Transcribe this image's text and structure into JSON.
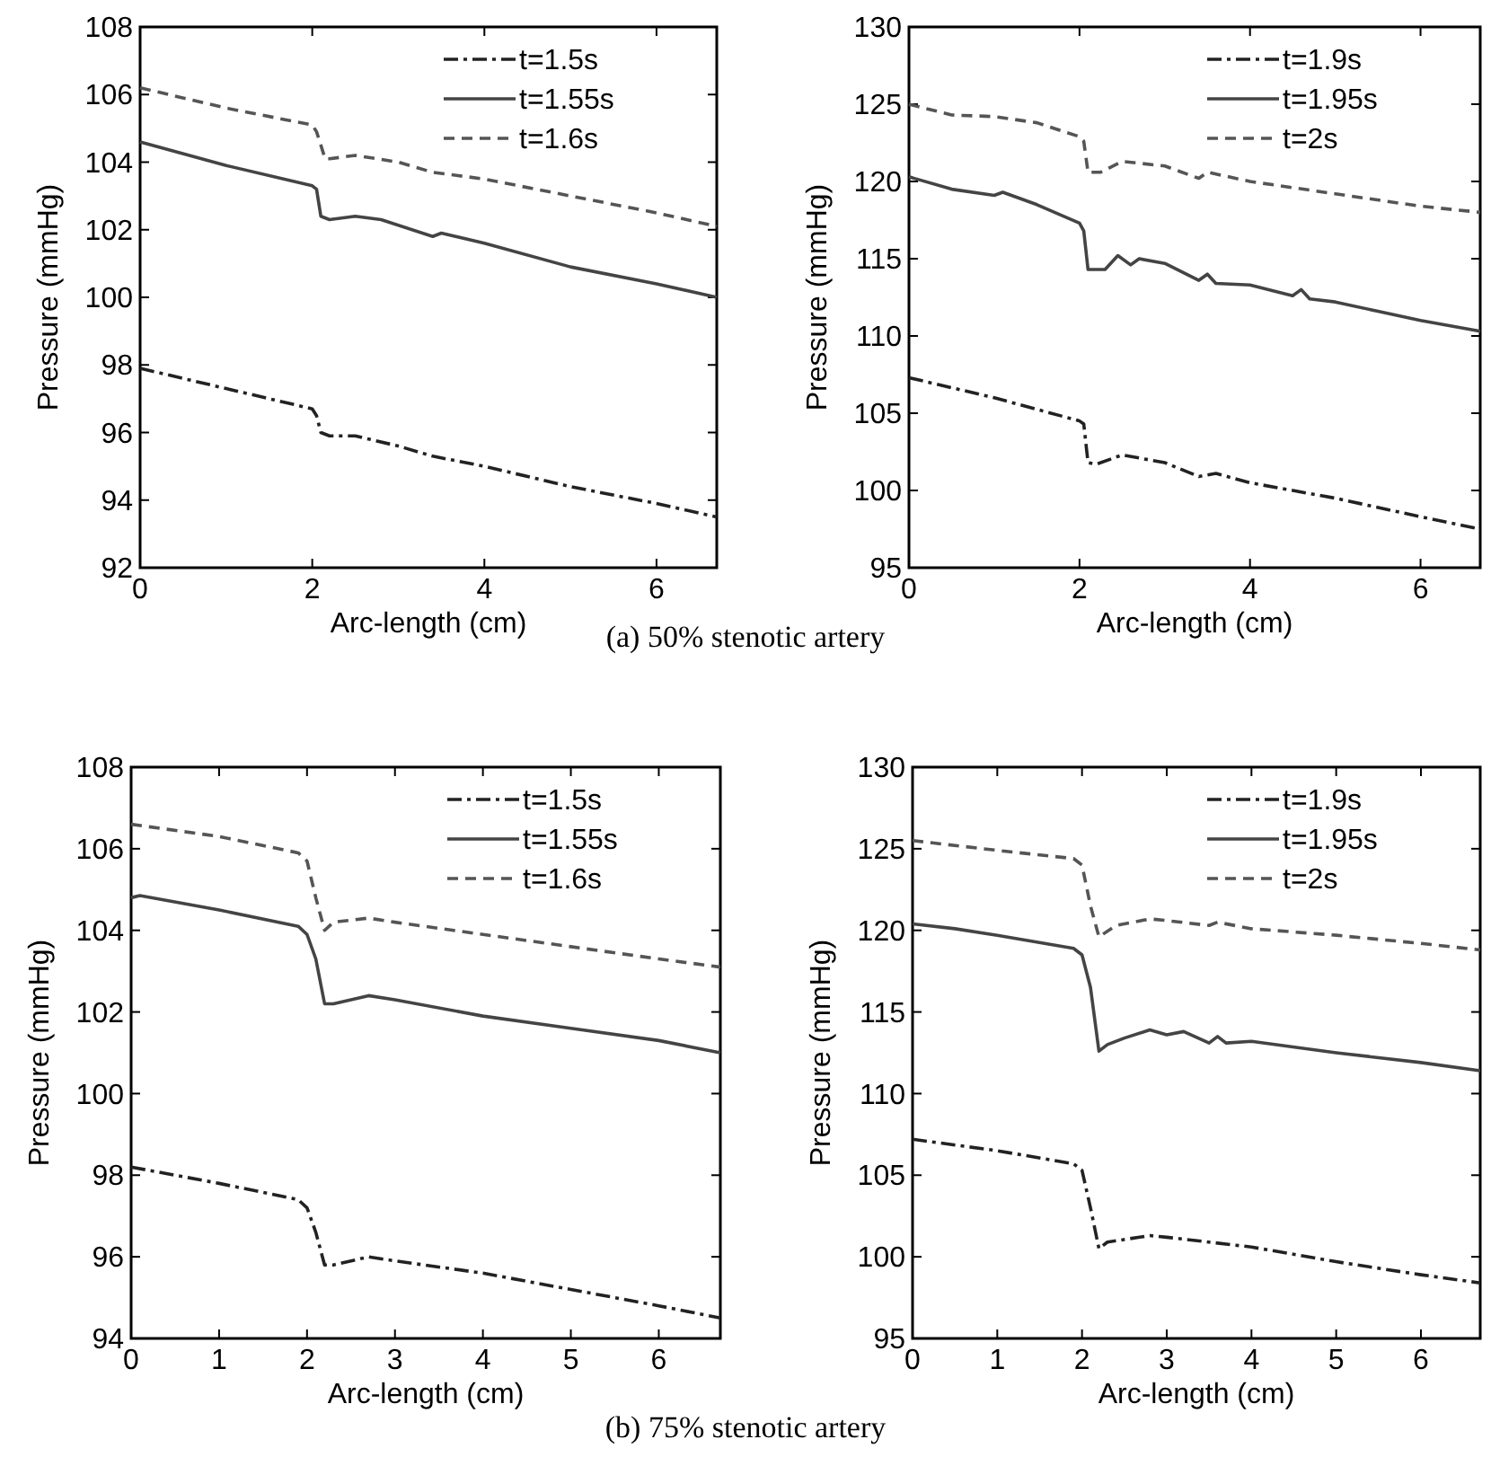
{
  "chart_data": [
    {
      "type": "line",
      "xlabel": "Arc-length (cm)",
      "ylabel": "Pressure (mmHg)",
      "xlim": [
        0,
        6.7
      ],
      "xticks": [
        0,
        2,
        4,
        6
      ],
      "ylim": [
        92,
        108
      ],
      "yticks": [
        92,
        94,
        96,
        98,
        100,
        102,
        104,
        106,
        108
      ],
      "legend": "top right",
      "grid": false,
      "annotations": [
        "(a) 50% stenotic artery"
      ],
      "series": [
        {
          "name": "t=1.5s",
          "color": "#222222",
          "line_style": "dashdot",
          "x": [
            0,
            1,
            2,
            2.05,
            2.1,
            2.2,
            2.5,
            3,
            3.4,
            4,
            5,
            6,
            6.7
          ],
          "values": [
            97.9,
            97.3,
            96.7,
            96.5,
            96.0,
            95.9,
            95.9,
            95.6,
            95.3,
            95.0,
            94.4,
            93.9,
            93.5
          ]
        },
        {
          "name": "t=1.55s",
          "color": "#444444",
          "line_style": "solid",
          "x": [
            0,
            1,
            2,
            2.05,
            2.1,
            2.2,
            2.5,
            2.8,
            3.4,
            3.5,
            4,
            5,
            6,
            6.7
          ],
          "values": [
            104.6,
            103.9,
            103.3,
            103.2,
            102.4,
            102.3,
            102.4,
            102.3,
            101.8,
            101.9,
            101.6,
            100.9,
            100.4,
            100.0
          ]
        },
        {
          "name": "t=1.6s",
          "color": "#555555",
          "line_style": "dashed",
          "x": [
            0,
            1,
            2,
            2.05,
            2.15,
            2.2,
            2.5,
            3,
            3.4,
            4,
            5,
            6,
            6.7
          ],
          "values": [
            106.2,
            105.6,
            105.1,
            104.9,
            104.1,
            104.1,
            104.2,
            104.0,
            103.7,
            103.5,
            103.0,
            102.5,
            102.1
          ]
        }
      ]
    },
    {
      "type": "line",
      "xlabel": "Arc-length (cm)",
      "ylabel": "Pressure (mmHg)",
      "xlim": [
        0,
        6.7
      ],
      "xticks": [
        0,
        2,
        4,
        6
      ],
      "ylim": [
        95,
        130
      ],
      "yticks": [
        95,
        100,
        105,
        110,
        115,
        120,
        125,
        130
      ],
      "legend": "top right",
      "grid": false,
      "series": [
        {
          "name": "t=1.9s",
          "color": "#222222",
          "line_style": "dashdot",
          "x": [
            0,
            1,
            2,
            2.05,
            2.1,
            2.2,
            2.5,
            3,
            3.4,
            3.6,
            4,
            5,
            6,
            6.7
          ],
          "values": [
            107.3,
            106,
            104.5,
            104.3,
            101.8,
            101.7,
            102.3,
            101.8,
            100.9,
            101.1,
            100.5,
            99.5,
            98.3,
            97.5
          ]
        },
        {
          "name": "t=1.95s",
          "color": "#444444",
          "line_style": "solid",
          "x": [
            0,
            0.5,
            1,
            1.1,
            1.5,
            2,
            2.05,
            2.1,
            2.3,
            2.45,
            2.6,
            2.7,
            3,
            3.4,
            3.5,
            3.6,
            4,
            4.5,
            4.6,
            4.7,
            5,
            5.5,
            6,
            6.7
          ],
          "values": [
            120.3,
            119.5,
            119.1,
            119.3,
            118.5,
            117.3,
            116.8,
            114.3,
            114.3,
            115.2,
            114.6,
            115,
            114.7,
            113.6,
            114,
            113.4,
            113.3,
            112.6,
            113,
            112.4,
            112.2,
            111.6,
            111,
            110.3
          ]
        },
        {
          "name": "t=2s",
          "color": "#555555",
          "line_style": "dashed",
          "x": [
            0,
            0.5,
            1,
            1.5,
            2,
            2.05,
            2.1,
            2.25,
            2.5,
            3,
            3.4,
            3.5,
            4,
            5,
            6,
            6.7
          ],
          "values": [
            125,
            124.3,
            124.2,
            123.8,
            122.9,
            122.6,
            120.6,
            120.6,
            121.3,
            121,
            120.2,
            120.6,
            120,
            119.2,
            118.4,
            118
          ]
        }
      ]
    },
    {
      "type": "line",
      "xlabel": "Arc-length (cm)",
      "ylabel": "Pressure (mmHg)",
      "xlim": [
        0,
        6.7
      ],
      "xticks": [
        0,
        1,
        2,
        3,
        4,
        5,
        6
      ],
      "ylim": [
        94,
        108
      ],
      "yticks": [
        94,
        96,
        98,
        100,
        102,
        104,
        106,
        108
      ],
      "legend": "top right",
      "grid": false,
      "annotations": [
        "(b) 75% stenotic artery"
      ],
      "series": [
        {
          "name": "t=1.5s",
          "color": "#222222",
          "line_style": "dashdot",
          "x": [
            0,
            1,
            1.9,
            2.0,
            2.1,
            2.2,
            2.3,
            2.7,
            3,
            4,
            5,
            6,
            6.7
          ],
          "values": [
            98.2,
            97.8,
            97.4,
            97.2,
            96.6,
            95.8,
            95.8,
            96.0,
            95.9,
            95.6,
            95.2,
            94.8,
            94.5
          ]
        },
        {
          "name": "t=1.55s",
          "color": "#444444",
          "line_style": "solid",
          "x": [
            0,
            0.1,
            1,
            1.9,
            2.0,
            2.1,
            2.2,
            2.3,
            2.7,
            3,
            4,
            5,
            6,
            6.7
          ],
          "values": [
            104.8,
            104.85,
            104.5,
            104.1,
            103.9,
            103.3,
            102.2,
            102.2,
            102.4,
            102.3,
            101.9,
            101.6,
            101.3,
            101.0
          ]
        },
        {
          "name": "t=1.6s",
          "color": "#555555",
          "line_style": "dashed",
          "x": [
            0,
            1,
            1.9,
            2.0,
            2.1,
            2.2,
            2.3,
            2.7,
            3,
            4,
            5,
            6,
            6.7
          ],
          "values": [
            106.6,
            106.3,
            105.9,
            105.7,
            104.8,
            104.0,
            104.2,
            104.3,
            104.2,
            103.9,
            103.6,
            103.3,
            103.1
          ]
        }
      ]
    },
    {
      "type": "line",
      "xlabel": "Arc-length (cm)",
      "ylabel": "Pressure (mmHg)",
      "xlim": [
        0,
        6.7
      ],
      "xticks": [
        0,
        1,
        2,
        3,
        4,
        5,
        6
      ],
      "ylim": [
        95,
        130
      ],
      "yticks": [
        95,
        100,
        105,
        110,
        115,
        120,
        125,
        130
      ],
      "legend": "top right",
      "grid": false,
      "series": [
        {
          "name": "t=1.9s",
          "color": "#222222",
          "line_style": "dashdot",
          "x": [
            0,
            1,
            1.9,
            2,
            2.1,
            2.2,
            2.3,
            2.8,
            3,
            4,
            5,
            6,
            6.7
          ],
          "values": [
            107.2,
            106.5,
            105.7,
            105.3,
            103,
            100.5,
            100.9,
            101.3,
            101.2,
            100.6,
            99.7,
            98.9,
            98.4
          ]
        },
        {
          "name": "t=1.95s",
          "color": "#444444",
          "line_style": "solid",
          "x": [
            0,
            0.5,
            1,
            1.9,
            2,
            2.1,
            2.2,
            2.3,
            2.5,
            2.8,
            3,
            3.2,
            3.5,
            3.6,
            3.7,
            4,
            5,
            6,
            6.7
          ],
          "values": [
            120.4,
            120.1,
            119.7,
            118.9,
            118.5,
            116.5,
            112.6,
            113,
            113.4,
            113.9,
            113.6,
            113.8,
            113.1,
            113.5,
            113.1,
            113.2,
            112.5,
            111.9,
            111.4
          ]
        },
        {
          "name": "t=2s",
          "color": "#555555",
          "line_style": "dashed",
          "x": [
            0,
            1,
            1.9,
            2,
            2.1,
            2.2,
            2.4,
            2.8,
            3,
            3.5,
            3.6,
            4,
            5,
            6,
            6.7
          ],
          "values": [
            125.5,
            124.9,
            124.4,
            124,
            121.5,
            119.6,
            120.3,
            120.7,
            120.6,
            120.3,
            120.5,
            120.1,
            119.7,
            119.2,
            118.8
          ]
        }
      ]
    }
  ]
}
